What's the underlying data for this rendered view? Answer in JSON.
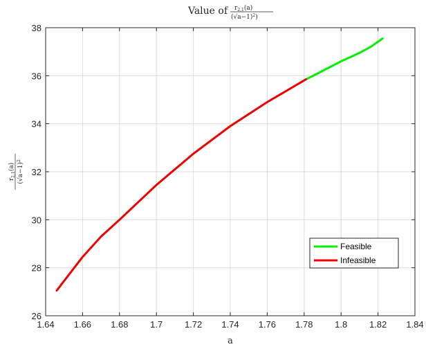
{
  "chart_data": {
    "type": "line",
    "title": {
      "prefix": "Value of",
      "numerator": "r",
      "numerator_sub": "2,1",
      "numerator_arg": "(a)",
      "denominator": "(√a−1)",
      "denominator_sup": "2",
      "denominator_close": ")"
    },
    "xlabel": "a",
    "ylabel": {
      "numerator": "r",
      "numerator_sub": "2,1",
      "numerator_arg": "(a)",
      "denominator": "(√a−1)",
      "denominator_sup": "2"
    },
    "xlim": [
      1.64,
      1.84
    ],
    "ylim": [
      26,
      38
    ],
    "xticks": [
      "1.64",
      "1.66",
      "1.68",
      "1.7",
      "1.72",
      "1.74",
      "1.76",
      "1.78",
      "1.8",
      "1.82",
      "1.84"
    ],
    "yticks": [
      "26",
      "28",
      "30",
      "32",
      "34",
      "36",
      "38"
    ],
    "grid": true,
    "legend_position": "bottom-right",
    "series": [
      {
        "name": "Feasible",
        "color": "#00ee00",
        "x": [
          1.781,
          1.79,
          1.8,
          1.81,
          1.816,
          1.8225
        ],
        "y": [
          35.85,
          36.2,
          36.6,
          36.95,
          37.2,
          37.55
        ]
      },
      {
        "name": "Infeasible",
        "color": "#ee0000",
        "x": [
          1.646,
          1.66,
          1.67,
          1.68,
          1.7,
          1.72,
          1.74,
          1.76,
          1.781
        ],
        "y": [
          27.05,
          28.45,
          29.3,
          30.0,
          31.45,
          32.75,
          33.9,
          34.9,
          35.85
        ]
      }
    ]
  }
}
